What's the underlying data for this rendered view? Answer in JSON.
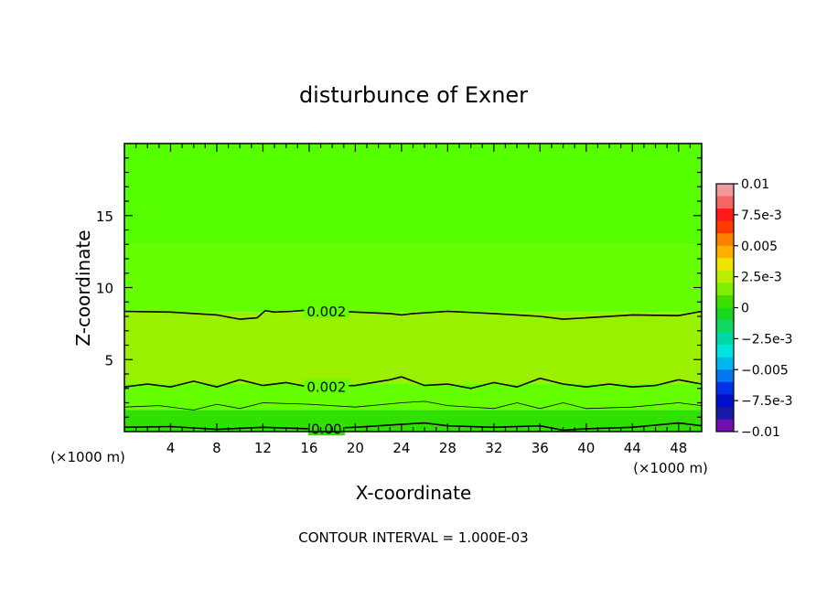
{
  "chart_data": {
    "type": "heatmap",
    "title": "disturbunce of Exner",
    "xlabel": "X-coordinate",
    "ylabel": "Z-coordinate",
    "x_unit_left": "(×1000 m)",
    "x_unit_right": "(×1000 m)",
    "xlim": [
      0,
      50
    ],
    "ylim": [
      0,
      20
    ],
    "x_ticks": [
      4,
      8,
      12,
      16,
      20,
      24,
      28,
      32,
      36,
      40,
      44,
      48
    ],
    "y_ticks": [
      5,
      10,
      15
    ],
    "footer": "CONTOUR INTERVAL = 1.000E-03",
    "colorbar": {
      "ticks": [
        "0.01",
        "7.5e-3",
        "0.005",
        "2.5e-3",
        "0",
        "−2.5e-3",
        "−0.005",
        "−7.5e-3",
        "−0.01"
      ],
      "bands": [
        "#f29a9a",
        "#f56565",
        "#ff1a1a",
        "#ff3a00",
        "#ff7f00",
        "#ffb000",
        "#f0e400",
        "#b8f000",
        "#7ff000",
        "#3ee000",
        "#1ad81a",
        "#10d860",
        "#00d8a8",
        "#00e4e0",
        "#00b8f0",
        "#0078f0",
        "#0030e8",
        "#0010c8",
        "#1818a8",
        "#7010b0"
      ]
    },
    "filled_regions": [
      {
        "name": "band-top",
        "color": "#56ff00",
        "z_from": 13,
        "z_to": 20
      },
      {
        "name": "band-upper",
        "color": "#66ff00",
        "z_from": 8.3,
        "z_to": 13
      },
      {
        "name": "band-middle",
        "color": "#99f000",
        "z_from": 3.3,
        "z_to": 8.3
      },
      {
        "name": "band-lower",
        "color": "#66ff00",
        "z_from": 1.5,
        "z_to": 3.3
      },
      {
        "name": "band-bottom",
        "color": "#30e000",
        "z_from": 0,
        "z_to": 1.5
      }
    ],
    "contours": [
      {
        "label": "0.002",
        "label_x": 17.5,
        "points": [
          [
            0,
            8.35
          ],
          [
            4,
            8.3
          ],
          [
            8,
            8.1
          ],
          [
            10,
            7.8
          ],
          [
            11.5,
            7.9
          ],
          [
            12.2,
            8.4
          ],
          [
            13,
            8.3
          ],
          [
            14.5,
            8.35
          ],
          [
            16,
            8.45
          ],
          [
            20,
            8.3
          ],
          [
            23,
            8.2
          ],
          [
            24,
            8.1
          ],
          [
            25,
            8.2
          ],
          [
            28,
            8.35
          ],
          [
            32,
            8.2
          ],
          [
            36,
            8.0
          ],
          [
            38,
            7.8
          ],
          [
            40,
            7.9
          ],
          [
            44,
            8.1
          ],
          [
            48,
            8.05
          ],
          [
            50,
            8.35
          ]
        ]
      },
      {
        "label": "0.002",
        "label_x": 17.5,
        "points": [
          [
            0,
            3.1
          ],
          [
            2,
            3.3
          ],
          [
            4,
            3.1
          ],
          [
            6,
            3.5
          ],
          [
            8,
            3.1
          ],
          [
            10,
            3.6
          ],
          [
            12,
            3.2
          ],
          [
            14,
            3.4
          ],
          [
            16,
            3.1
          ],
          [
            20,
            3.2
          ],
          [
            23,
            3.6
          ],
          [
            24,
            3.8
          ],
          [
            26,
            3.2
          ],
          [
            28,
            3.3
          ],
          [
            30,
            3.0
          ],
          [
            32,
            3.4
          ],
          [
            34,
            3.1
          ],
          [
            36,
            3.7
          ],
          [
            38,
            3.3
          ],
          [
            40,
            3.1
          ],
          [
            42,
            3.3
          ],
          [
            44,
            3.1
          ],
          [
            46,
            3.2
          ],
          [
            48,
            3.6
          ],
          [
            50,
            3.3
          ]
        ]
      },
      {
        "label": "",
        "label_x": 0,
        "points": [
          [
            0,
            1.7
          ],
          [
            3,
            1.8
          ],
          [
            6,
            1.5
          ],
          [
            8,
            1.9
          ],
          [
            10,
            1.6
          ],
          [
            12,
            2.0
          ],
          [
            16,
            1.9
          ],
          [
            20,
            1.7
          ],
          [
            24,
            2.0
          ],
          [
            26,
            2.1
          ],
          [
            28,
            1.8
          ],
          [
            32,
            1.6
          ],
          [
            34,
            2.0
          ],
          [
            36,
            1.6
          ],
          [
            38,
            2.0
          ],
          [
            40,
            1.6
          ],
          [
            44,
            1.7
          ],
          [
            48,
            2.0
          ],
          [
            50,
            1.8
          ]
        ]
      },
      {
        "label": "0.00",
        "label_x": 17.5,
        "points": [
          [
            0,
            0.3
          ],
          [
            4,
            0.35
          ],
          [
            8,
            0.15
          ],
          [
            12,
            0.3
          ],
          [
            16,
            0.2
          ],
          [
            20,
            0.3
          ],
          [
            24,
            0.5
          ],
          [
            26,
            0.6
          ],
          [
            28,
            0.4
          ],
          [
            32,
            0.3
          ],
          [
            36,
            0.4
          ],
          [
            38,
            0.1
          ],
          [
            40,
            0.2
          ],
          [
            44,
            0.3
          ],
          [
            48,
            0.6
          ],
          [
            50,
            0.4
          ]
        ]
      }
    ]
  }
}
